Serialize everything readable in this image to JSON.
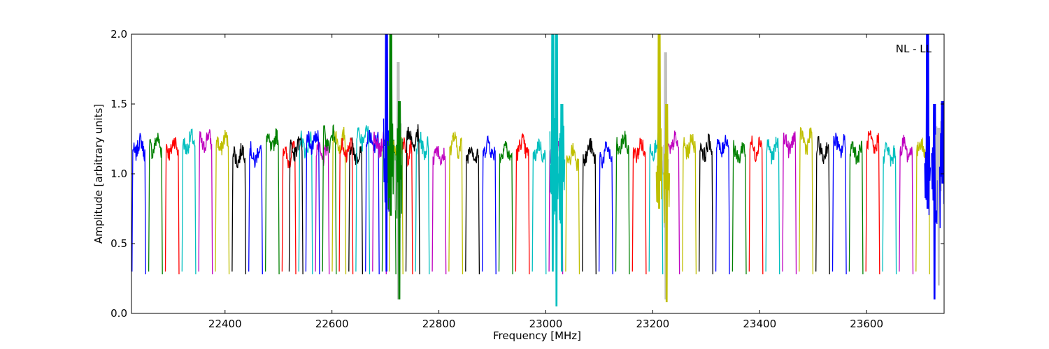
{
  "chart_data": {
    "type": "line",
    "title": "",
    "xlabel": "Frequency [MHz]",
    "ylabel": "Amplitude [arbitrary units]",
    "annotation": "NL - LL",
    "xlim": [
      22225,
      23745
    ],
    "ylim": [
      0.0,
      2.0
    ],
    "xticks": [
      "22400",
      "22600",
      "22800",
      "23000",
      "23200",
      "23400",
      "23600"
    ],
    "yticks": [
      "0.0",
      "0.5",
      "1.0",
      "1.5",
      "2.0"
    ],
    "grid": false,
    "color_cycle": [
      "#0000ff",
      "#008000",
      "#ff0000",
      "#00bfbf",
      "#bf00bf",
      "#bfbf00",
      "#000000"
    ],
    "band_groups": [
      {
        "start": 22226,
        "step": 31.2,
        "count": 48,
        "top": 1.18
      },
      {
        "start": 22520,
        "step": 31.2,
        "count": 8,
        "top": 1.22
      }
    ],
    "spikes": [
      {
        "x": 22702,
        "peak": 2.0,
        "dip": 0.3,
        "color": "#0000ff"
      },
      {
        "x": 22710,
        "peak": 2.0,
        "dip": 0.7,
        "color": "#008000"
      },
      {
        "x": 22724,
        "peak": 1.8,
        "dip": 0.1,
        "color": "#c0c0c0"
      },
      {
        "x": 22726,
        "peak": 1.52,
        "dip": 0.1,
        "color": "#008000"
      },
      {
        "x": 23013,
        "peak": 2.0,
        "dip": 0.3,
        "color": "#00bfbf"
      },
      {
        "x": 23020,
        "peak": 2.0,
        "dip": 0.05,
        "color": "#00bfbf"
      },
      {
        "x": 23030,
        "peak": 1.5,
        "dip": 0.3,
        "color": "#00bfbf"
      },
      {
        "x": 23212,
        "peak": 2.0,
        "dip": 0.75,
        "color": "#bfbf00"
      },
      {
        "x": 23224,
        "peak": 1.87,
        "dip": 0.1,
        "color": "#c0c0c0"
      },
      {
        "x": 23226,
        "peak": 1.5,
        "dip": 0.08,
        "color": "#bfbf00"
      },
      {
        "x": 23714,
        "peak": 2.0,
        "dip": 0.75,
        "color": "#0000ff"
      },
      {
        "x": 23727,
        "peak": 1.5,
        "dip": 0.1,
        "color": "#0000ff"
      },
      {
        "x": 23735,
        "peak": 1.33,
        "dip": 0.2,
        "color": "#c0c0c0"
      },
      {
        "x": 23742,
        "peak": 1.52,
        "dip": 0.93,
        "color": "#0000ff"
      }
    ]
  }
}
